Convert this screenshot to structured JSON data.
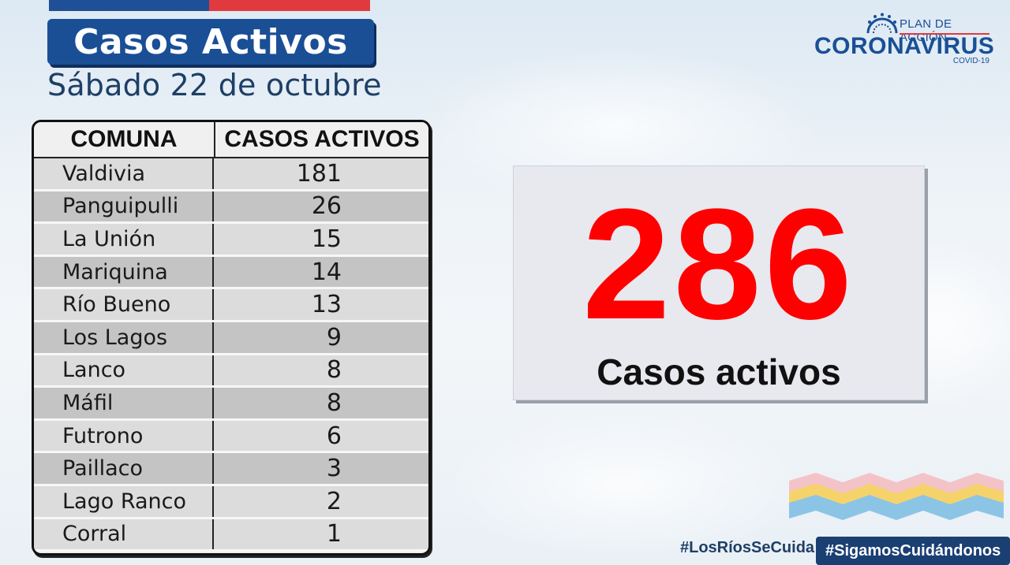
{
  "header": {
    "title": "Casos Activos",
    "date": "Sábado 22 de octubre"
  },
  "logo": {
    "top_line": "PLAN DE ACCIÓN",
    "main": "CORONAVIRUS",
    "sub": "COVID-19"
  },
  "table": {
    "columns": [
      "COMUNA",
      "CASOS ACTIVOS"
    ],
    "rows": [
      {
        "comuna": "Valdivia",
        "casos": "181"
      },
      {
        "comuna": "Panguipulli",
        "casos": "26"
      },
      {
        "comuna": "La Unión",
        "casos": "15"
      },
      {
        "comuna": "Mariquina",
        "casos": "14"
      },
      {
        "comuna": "Río Bueno",
        "casos": "13"
      },
      {
        "comuna": "Los Lagos",
        "casos": "9"
      },
      {
        "comuna": "Lanco",
        "casos": "8"
      },
      {
        "comuna": "Máfil",
        "casos": "8"
      },
      {
        "comuna": "Futrono",
        "casos": "6"
      },
      {
        "comuna": "Paillaco",
        "casos": "3"
      },
      {
        "comuna": "Lago Ranco",
        "casos": "2"
      },
      {
        "comuna": "Corral",
        "casos": "1"
      }
    ]
  },
  "summary": {
    "total": "286",
    "label": "Casos activos"
  },
  "hashtags": {
    "first": "#LosRíosSeCuida",
    "second": "#SigamosCuidándonos"
  },
  "colors": {
    "brand_blue": "#1a4f96",
    "flag_red": "#e03a3e",
    "highlight_red": "#ff0000"
  }
}
